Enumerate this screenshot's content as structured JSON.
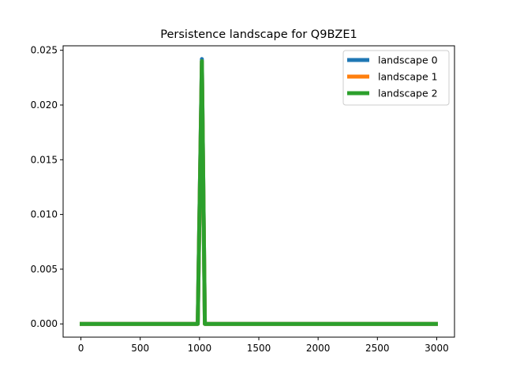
{
  "chart_data": {
    "type": "line",
    "title": "Persistence landscape for Q9BZE1",
    "xlabel": "",
    "ylabel": "",
    "xlim": [
      -150,
      3150
    ],
    "ylim": [
      -0.00121,
      0.02541
    ],
    "xticks": [
      0,
      500,
      1000,
      1500,
      2000,
      2500,
      3000
    ],
    "xtick_labels": [
      "0",
      "500",
      "1000",
      "1500",
      "2000",
      "2500",
      "3000"
    ],
    "yticks": [
      0.0,
      0.005,
      0.01,
      0.015,
      0.02,
      0.025
    ],
    "ytick_labels": [
      "0.000",
      "0.005",
      "0.010",
      "0.015",
      "0.020",
      "0.025"
    ],
    "grid": false,
    "legend": "top-right",
    "series": [
      {
        "name": "landscape 0",
        "color": "#1f77b4",
        "x": [
          -10,
          985,
          1020,
          1045,
          3010
        ],
        "y": [
          0.0,
          0.0,
          0.0242,
          0.0,
          0.0
        ]
      },
      {
        "name": "landscape 1",
        "color": "#ff7f0e",
        "x": [
          -10,
          985,
          1020,
          1045,
          3010
        ],
        "y": [
          0.0,
          0.0,
          0.024,
          0.0,
          0.0
        ]
      },
      {
        "name": "landscape 2",
        "color": "#2ca02c",
        "x": [
          -10,
          985,
          1020,
          1045,
          3010
        ],
        "y": [
          0.0,
          0.0,
          0.024,
          0.0,
          0.0
        ]
      }
    ]
  }
}
